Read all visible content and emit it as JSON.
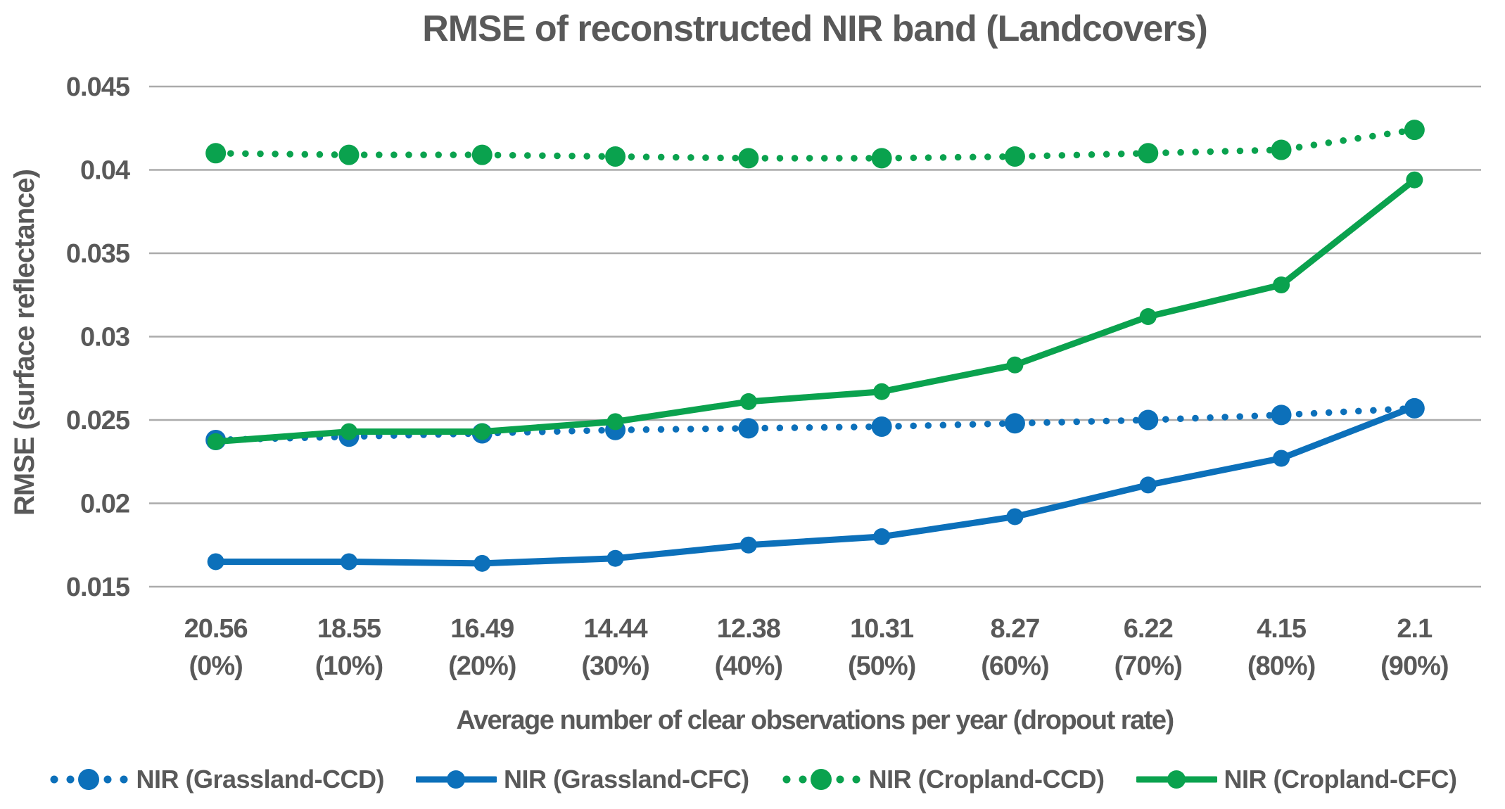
{
  "chart_data": {
    "type": "line",
    "title": "RMSE of reconstructed NIR band (Landcovers)",
    "xlabel": "Average number of clear observations per year (dropout rate)",
    "ylabel": "RMSE (surface reflectance)",
    "grid": true,
    "legend_position": "bottom",
    "ylim": [
      0.015,
      0.045
    ],
    "yticks": [
      {
        "value": 0.045,
        "label": "0.045"
      },
      {
        "value": 0.04,
        "label": "0.04"
      },
      {
        "value": 0.035,
        "label": "0.035"
      },
      {
        "value": 0.03,
        "label": "0.03"
      },
      {
        "value": 0.025,
        "label": "0.025"
      },
      {
        "value": 0.02,
        "label": "0.02"
      },
      {
        "value": 0.015,
        "label": "0.015"
      }
    ],
    "categories": [
      {
        "line1": "20.56",
        "line2": "(0%)"
      },
      {
        "line1": "18.55",
        "line2": "(10%)"
      },
      {
        "line1": "16.49",
        "line2": "(20%)"
      },
      {
        "line1": "14.44",
        "line2": "(30%)"
      },
      {
        "line1": "12.38",
        "line2": "(40%)"
      },
      {
        "line1": "10.31",
        "line2": "(50%)"
      },
      {
        "line1": "8.27",
        "line2": "(60%)"
      },
      {
        "line1": "6.22",
        "line2": "(70%)"
      },
      {
        "line1": "4.15",
        "line2": "(80%)"
      },
      {
        "line1": "2.1",
        "line2": "(90%)"
      }
    ],
    "series": [
      {
        "name": "NIR (Grassland-CCD)",
        "style": "dotted",
        "color": "#0c70ba",
        "values": [
          0.0238,
          0.024,
          0.0242,
          0.0244,
          0.0245,
          0.0246,
          0.0248,
          0.025,
          0.0253,
          0.0257
        ]
      },
      {
        "name": "NIR (Grassland-CFC)",
        "style": "solid",
        "color": "#0c70ba",
        "values": [
          0.0165,
          0.0165,
          0.0164,
          0.0167,
          0.0175,
          0.018,
          0.0192,
          0.0211,
          0.0227,
          0.0258
        ]
      },
      {
        "name": "NIR (Cropland-CCD)",
        "style": "dotted",
        "color": "#0aa24e",
        "values": [
          0.041,
          0.0409,
          0.0409,
          0.0408,
          0.0407,
          0.0407,
          0.0408,
          0.041,
          0.0412,
          0.0424
        ]
      },
      {
        "name": "NIR (Cropland-CFC)",
        "style": "solid",
        "color": "#0aa24e",
        "values": [
          0.0237,
          0.0243,
          0.0243,
          0.0249,
          0.0261,
          0.0267,
          0.0283,
          0.0312,
          0.0331,
          0.0394
        ]
      }
    ]
  },
  "colors": {
    "text": "#595959",
    "gridline": "#ababab",
    "blue": "#0c70ba",
    "green": "#0aa24e",
    "background": "#ffffff"
  }
}
